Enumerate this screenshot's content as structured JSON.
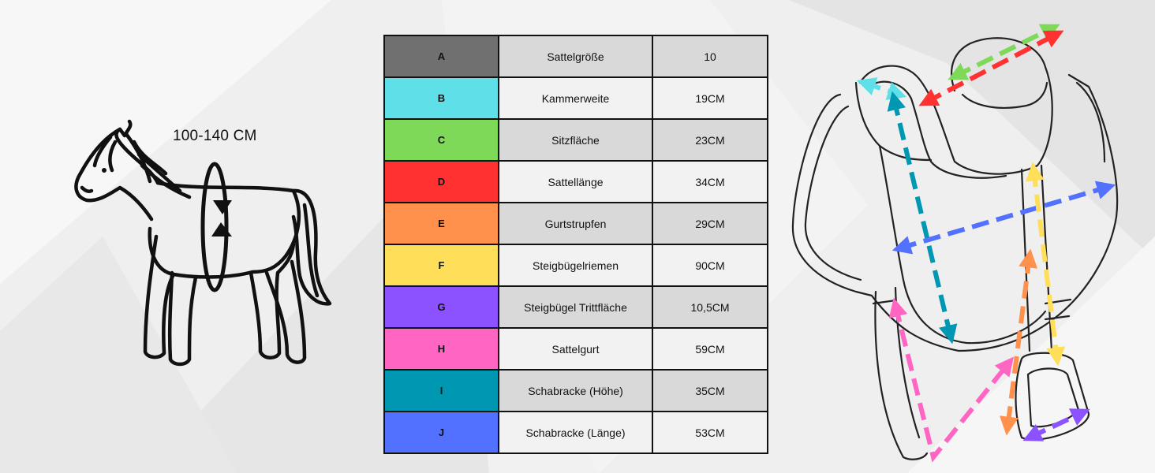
{
  "horse": {
    "height_label": "100-140 CM"
  },
  "table": {
    "rows": [
      {
        "code": "A",
        "name": "Sattelgröße",
        "value": "10",
        "color": "#707070"
      },
      {
        "code": "B",
        "name": "Kammerweite",
        "value": "19CM",
        "color": "#5fe0e8"
      },
      {
        "code": "C",
        "name": "Sitzfläche",
        "value": "23CM",
        "color": "#7dd957"
      },
      {
        "code": "D",
        "name": "Sattellänge",
        "value": "34CM",
        "color": "#ff3131"
      },
      {
        "code": "E",
        "name": "Gurtstrupfen",
        "value": "29CM",
        "color": "#ff914d"
      },
      {
        "code": "F",
        "name": "Steigbügelriemen",
        "value": "90CM",
        "color": "#ffde59"
      },
      {
        "code": "G",
        "name": "Steigbügel Trittfläche",
        "value": "10,5CM",
        "color": "#8c52ff"
      },
      {
        "code": "H",
        "name": "Sattelgurt",
        "value": "59CM",
        "color": "#ff66c4"
      },
      {
        "code": "I",
        "name": "Schabracke (Höhe)",
        "value": "35CM",
        "color": "#0097b2"
      },
      {
        "code": "J",
        "name": "Schabracke (Länge)",
        "value": "53CM",
        "color": "#5271ff"
      }
    ]
  }
}
